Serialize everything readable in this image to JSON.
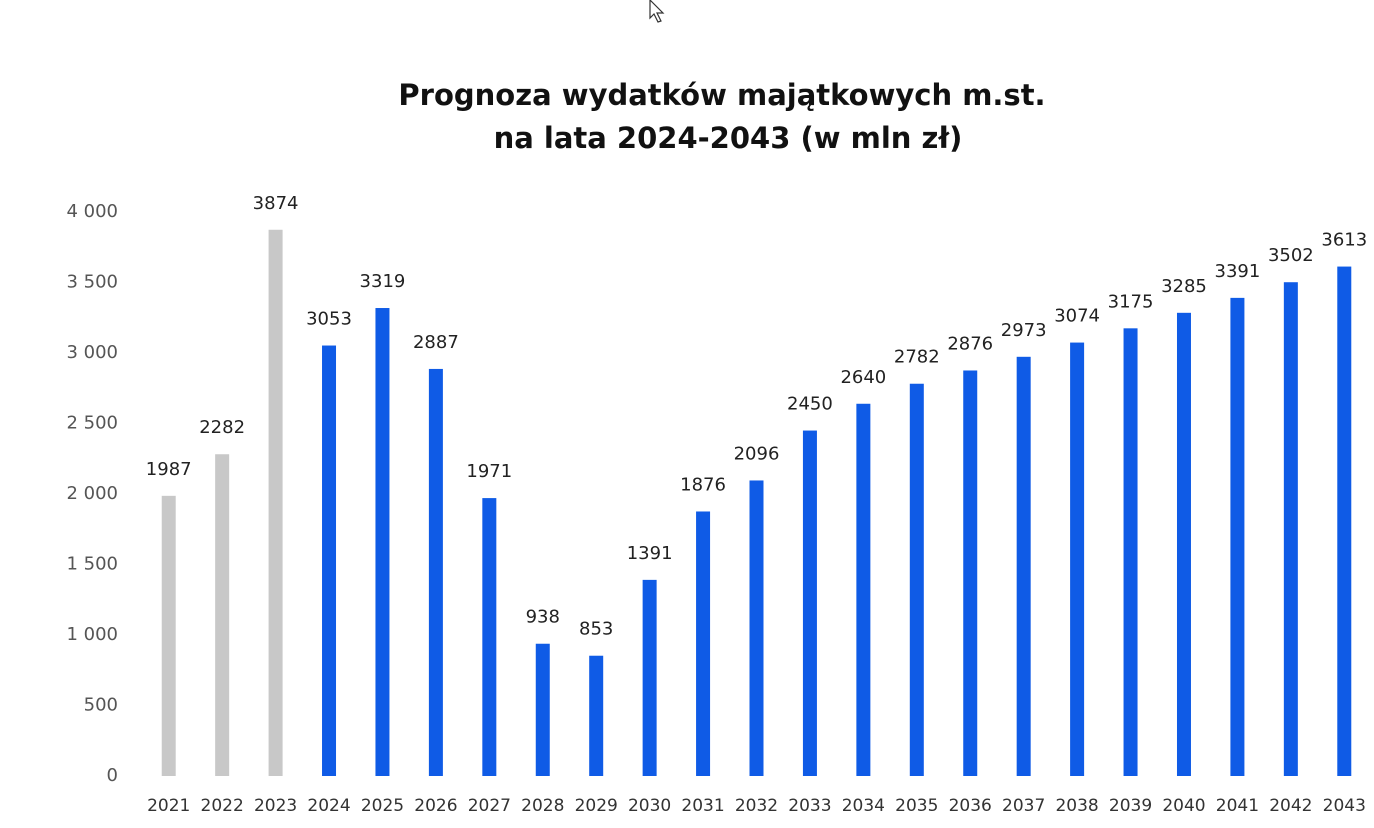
{
  "chart_data": {
    "type": "bar",
    "title": [
      "Prognoza wydatków majątkowych m.st.",
      "na lata 2024-2043 (w mln zł)"
    ],
    "categories": [
      "2021",
      "2022",
      "2023",
      "2024",
      "2025",
      "2026",
      "2027",
      "2028",
      "2029",
      "2030",
      "2031",
      "2032",
      "2033",
      "2034",
      "2035",
      "2036",
      "2037",
      "2038",
      "2039",
      "2040",
      "2041",
      "2042",
      "2043"
    ],
    "values": [
      1987,
      2282,
      3874,
      3053,
      3319,
      2887,
      1971,
      938,
      853,
      1391,
      1876,
      2096,
      2450,
      2640,
      2782,
      2876,
      2973,
      3074,
      3175,
      3285,
      3391,
      3502,
      3613
    ],
    "colors": [
      "#c8c8c8",
      "#c8c8c8",
      "#c8c8c8",
      "#0f5be6",
      "#0f5be6",
      "#0f5be6",
      "#0f5be6",
      "#0f5be6",
      "#0f5be6",
      "#0f5be6",
      "#0f5be6",
      "#0f5be6",
      "#0f5be6",
      "#0f5be6",
      "#0f5be6",
      "#0f5be6",
      "#0f5be6",
      "#0f5be6",
      "#0f5be6",
      "#0f5be6",
      "#0f5be6",
      "#0f5be6",
      "#0f5be6"
    ],
    "ylim": [
      0,
      4000
    ],
    "yticks": [
      0,
      500,
      {
        "value": 1000,
        "label": "1 000"
      },
      {
        "value": 1500,
        "label": "1 500"
      },
      {
        "value": 2000,
        "label": "2 000"
      },
      {
        "value": 2500,
        "label": "2 500"
      },
      {
        "value": 3000,
        "label": "3 000"
      },
      {
        "value": 3500,
        "label": "3 500"
      },
      {
        "value": 4000,
        "label": "4 000"
      }
    ],
    "grid": false
  }
}
